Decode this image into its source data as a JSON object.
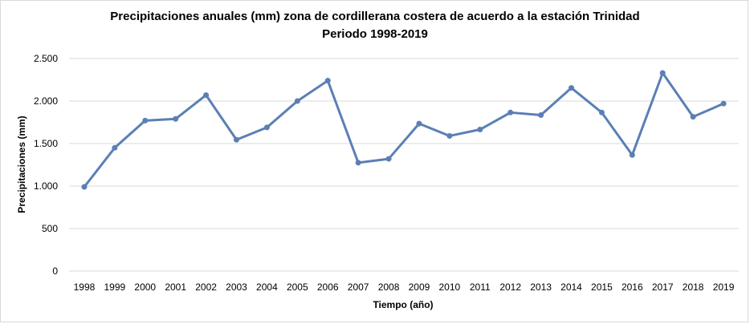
{
  "chart_data": {
    "type": "line",
    "title_line1": "Precipitaciones anuales (mm) zona de cordillerana costera de acuerdo a la estación Trinidad",
    "title_line2": "Periodo 1998-2019",
    "xlabel": "Tiempo (año)",
    "ylabel": "Precipitaciones (mm)",
    "ylim": [
      0,
      2500
    ],
    "yticks": [
      0,
      500,
      1000,
      1500,
      2000,
      2500
    ],
    "ytick_labels": [
      "0",
      "500",
      "1.000",
      "1.500",
      "2.000",
      "2.500"
    ],
    "grid": true,
    "line_color": "#5b7fb5",
    "categories": [
      "1998",
      "1999",
      "2000",
      "2001",
      "2002",
      "2003",
      "2004",
      "2005",
      "2006",
      "2007",
      "2008",
      "2009",
      "2010",
      "2011",
      "2012",
      "2013",
      "2014",
      "2015",
      "2016",
      "2017",
      "2018",
      "2019"
    ],
    "values": [
      990,
      1450,
      1770,
      1790,
      2070,
      1545,
      1690,
      2000,
      2240,
      1275,
      1320,
      1735,
      1590,
      1665,
      1865,
      1835,
      2155,
      1865,
      1365,
      2330,
      1815,
      1970
    ]
  }
}
